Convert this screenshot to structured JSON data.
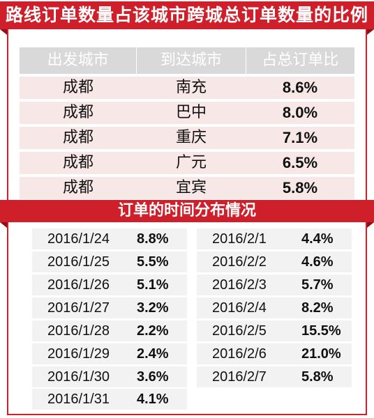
{
  "title": "路线订单数量占该城市跨城总订单数量的比例",
  "route_table": {
    "headers": [
      "出发城市",
      "到达城市",
      "占总订单比"
    ],
    "rows": [
      {
        "from": "成都",
        "to": "南充",
        "share": "8.6%"
      },
      {
        "from": "成都",
        "to": "巴中",
        "share": "8.0%"
      },
      {
        "from": "成都",
        "to": "重庆",
        "share": "7.1%"
      },
      {
        "from": "成都",
        "to": "广元",
        "share": "6.5%"
      },
      {
        "from": "成都",
        "to": "宜宾",
        "share": "5.8%"
      }
    ]
  },
  "time_section": {
    "title": "订单的时间分布情况",
    "left": [
      {
        "date": "2016/1/24",
        "value": "8.8%"
      },
      {
        "date": "2016/1/25",
        "value": "5.5%"
      },
      {
        "date": "2016/1/26",
        "value": "5.1%"
      },
      {
        "date": "2016/1/27",
        "value": "3.2%"
      },
      {
        "date": "2016/1/28",
        "value": "2.2%"
      },
      {
        "date": "2016/1/29",
        "value": "2.4%"
      },
      {
        "date": "2016/1/30",
        "value": "3.6%"
      },
      {
        "date": "2016/1/31",
        "value": "4.1%"
      }
    ],
    "right": [
      {
        "date": "2016/2/1",
        "value": "4.4%"
      },
      {
        "date": "2016/2/2",
        "value": "4.6%"
      },
      {
        "date": "2016/2/3",
        "value": "5.7%"
      },
      {
        "date": "2016/2/4",
        "value": "8.2%"
      },
      {
        "date": "2016/2/5",
        "value": "15.5%"
      },
      {
        "date": "2016/2/6",
        "value": "21.0%"
      },
      {
        "date": "2016/2/7",
        "value": "5.8%"
      }
    ]
  },
  "colors": {
    "accent": "#cf1f2a",
    "header_bg": "#d9d9d9",
    "row_bg": "#f7e7e7",
    "time_row_bg": "#f2f2f2"
  }
}
